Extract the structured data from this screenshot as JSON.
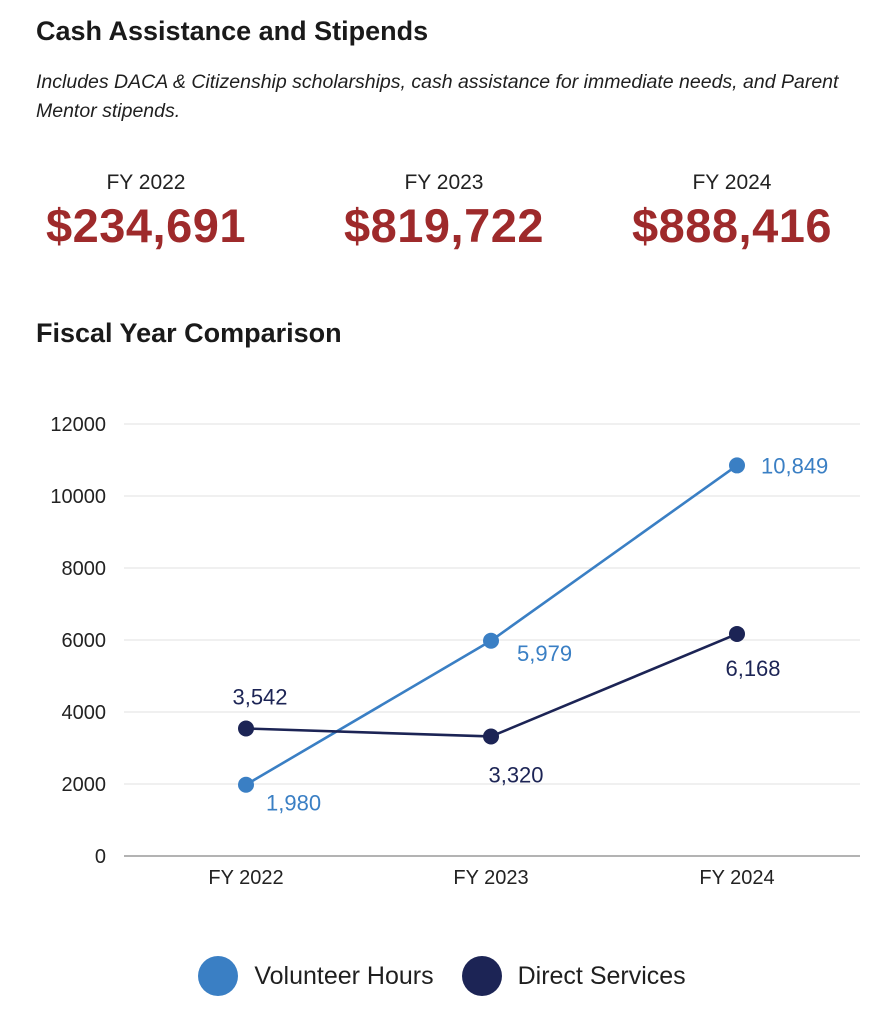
{
  "cash_section": {
    "title": "Cash Assistance and Stipends",
    "subtitle": "Includes DACA & Citizenship scholarships, cash assistance for immediate needs, and Parent Mentor stipends.",
    "stats": [
      {
        "label": "FY 2022",
        "value": "$234,691"
      },
      {
        "label": "FY 2023",
        "value": "$819,722"
      },
      {
        "label": "FY 2024",
        "value": "$888,416"
      }
    ],
    "value_color": "#9e2a2b"
  },
  "chart_section": {
    "title": "Fiscal Year Comparison"
  },
  "chart_data": {
    "type": "line",
    "categories": [
      "FY 2022",
      "FY 2023",
      "FY 2024"
    ],
    "ylim": [
      0,
      12000
    ],
    "yticks": [
      0,
      2000,
      4000,
      6000,
      8000,
      10000,
      12000
    ],
    "grid": true,
    "legend_position": "bottom",
    "series": [
      {
        "name": "Volunteer Hours",
        "color": "#3a7fc4",
        "values": [
          1980,
          5979,
          10849
        ],
        "labels": [
          "1,980",
          "5,979",
          "10,849"
        ]
      },
      {
        "name": "Direct Services",
        "color": "#1c2455",
        "values": [
          3542,
          3320,
          6168
        ],
        "labels": [
          "3,542",
          "3,320",
          "6,168"
        ]
      }
    ]
  }
}
